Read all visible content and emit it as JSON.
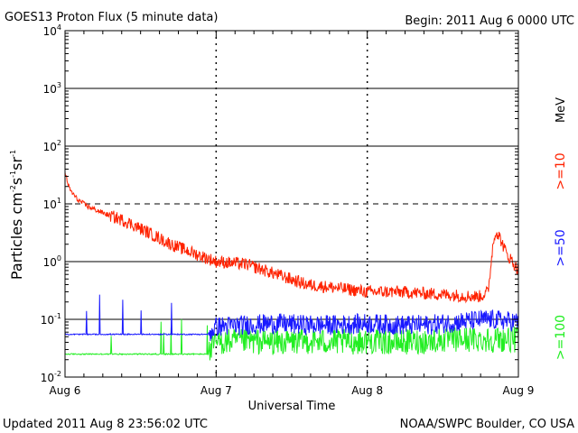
{
  "chart_data": {
    "type": "line",
    "title": "GOES13 Proton Flux (5 minute data)",
    "begin_label": "Begin: 2011 Aug 6 0000 UTC",
    "xlabel": "Universal Time",
    "ylabel": "Particles cm⁻²s⁻¹sr⁻¹",
    "ylabel_parts": {
      "base": "Particles cm",
      "e1": "-2",
      "s": "s",
      "e2": "-1",
      "sr": "sr",
      "e3": "-1"
    },
    "yscale": "log",
    "ylim": [
      0.01,
      10000
    ],
    "xlim": [
      0,
      3
    ],
    "x_unit": "days since 2011 Aug 6 0000 UTC",
    "x_ticks": [
      {
        "value": 0,
        "label": "Aug 6"
      },
      {
        "value": 1,
        "label": "Aug 7"
      },
      {
        "value": 2,
        "label": "Aug 8"
      },
      {
        "value": 3,
        "label": "Aug 9"
      }
    ],
    "y_ticks": [
      {
        "exp": -2,
        "label": "10",
        "sup": "-2"
      },
      {
        "exp": -1,
        "label": "10",
        "sup": "-1"
      },
      {
        "exp": 0,
        "label": "10",
        "sup": "0"
      },
      {
        "exp": 1,
        "label": "10",
        "sup": "1"
      },
      {
        "exp": 2,
        "label": "10",
        "sup": "2"
      },
      {
        "exp": 3,
        "label": "10",
        "sup": "3"
      },
      {
        "exp": 4,
        "label": "10",
        "sup": "4"
      }
    ],
    "threshold_lines": [
      {
        "value": 10,
        "style": "dashed"
      },
      {
        "value": 1,
        "style": "solid"
      }
    ],
    "energy_unit": "MeV",
    "series": [
      {
        "name": ">=10",
        "color": "#ff2200",
        "x": [
          0,
          0.03,
          0.08,
          0.15,
          0.25,
          0.4,
          0.55,
          0.7,
          0.85,
          1.0,
          1.2,
          1.4,
          1.6,
          1.8,
          2.0,
          2.2,
          2.4,
          2.6,
          2.7,
          2.75,
          2.8,
          2.83,
          2.85,
          2.88,
          2.92,
          2.96,
          3.0
        ],
        "values": [
          35,
          18,
          12,
          9,
          7,
          5,
          3.2,
          2,
          1.4,
          1.0,
          0.9,
          0.6,
          0.4,
          0.35,
          0.3,
          0.3,
          0.28,
          0.26,
          0.25,
          0.25,
          0.3,
          1.8,
          3.5,
          2.5,
          1.4,
          1.0,
          0.7
        ]
      },
      {
        "name": ">=50",
        "color": "#1a1aff",
        "x": [
          0,
          0.1,
          0.3,
          0.5,
          0.7,
          0.95,
          1.0,
          1.2,
          1.4,
          1.6,
          1.8,
          2.0,
          2.2,
          2.4,
          2.6,
          2.8,
          3.0
        ],
        "values": [
          0.055,
          0.055,
          0.055,
          0.055,
          0.055,
          0.055,
          0.075,
          0.08,
          0.085,
          0.08,
          0.08,
          0.085,
          0.08,
          0.08,
          0.09,
          0.1,
          0.09
        ]
      },
      {
        "name": ">=100",
        "color": "#22ee22",
        "x": [
          0,
          0.1,
          0.3,
          0.5,
          0.7,
          0.95,
          1.0,
          1.2,
          1.4,
          1.6,
          1.8,
          2.0,
          2.2,
          2.4,
          2.6,
          2.8,
          3.0
        ],
        "values": [
          0.025,
          0.025,
          0.025,
          0.025,
          0.025,
          0.025,
          0.04,
          0.042,
          0.04,
          0.042,
          0.04,
          0.042,
          0.04,
          0.042,
          0.045,
          0.045,
          0.045
        ]
      }
    ]
  },
  "footer": {
    "updated": "Updated 2011 Aug  8 23:56:02 UTC",
    "source": "NOAA/SWPC Boulder, CO USA"
  }
}
